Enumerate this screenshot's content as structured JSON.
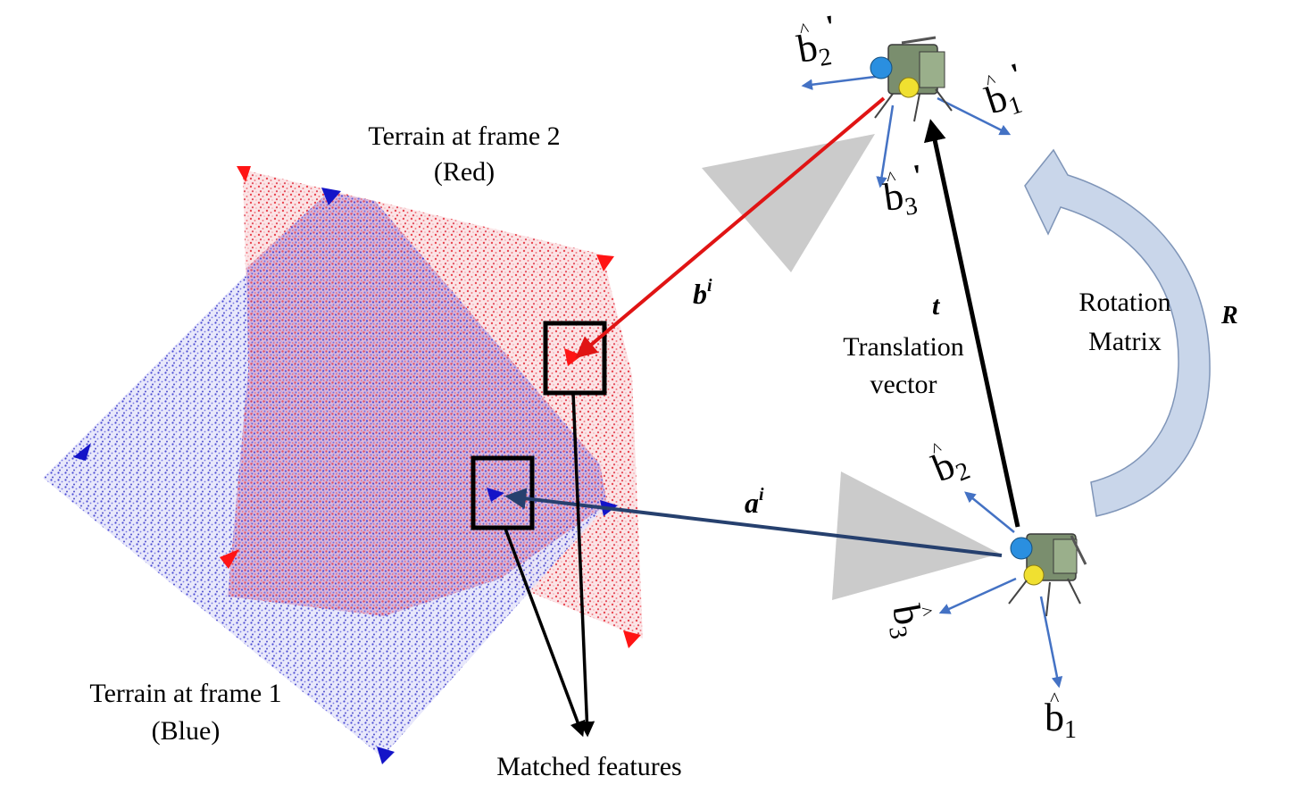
{
  "labels": {
    "terrain_frame2": "Terrain at frame 2",
    "terrain_frame2_color": "(Red)",
    "terrain_frame1": "Terrain at frame 1",
    "terrain_frame1_color": "(Blue)",
    "matched_features": "Matched features",
    "vec_b": "b",
    "vec_b_sup": "i",
    "vec_a": "a",
    "vec_a_sup": "i",
    "vec_t": "t",
    "translation_line1": "Translation",
    "translation_line2": "vector",
    "rotation_line1": "Rotation",
    "rotation_line2": "Matrix",
    "rot_symbol": "R",
    "b1": "b",
    "b1_sub": "1",
    "b2": "b",
    "b2_sub": "2",
    "b3": "b",
    "b3_sub": "3",
    "b1p": "b",
    "b1p_sub": "1",
    "b2p": "b",
    "b2p_sub": "2",
    "b3p": "b",
    "b3p_sub": "3",
    "prime": "'",
    "hat": "^"
  },
  "colors": {
    "red_cloud": "#e8404a",
    "blue_cloud": "#3a3ad0",
    "red_arrow": "#e01414",
    "blue_arrow": "#26406e",
    "axis_arrow": "#4472c4",
    "rotation_fill": "#c9d6ea",
    "cone": "#c8c8c8"
  }
}
